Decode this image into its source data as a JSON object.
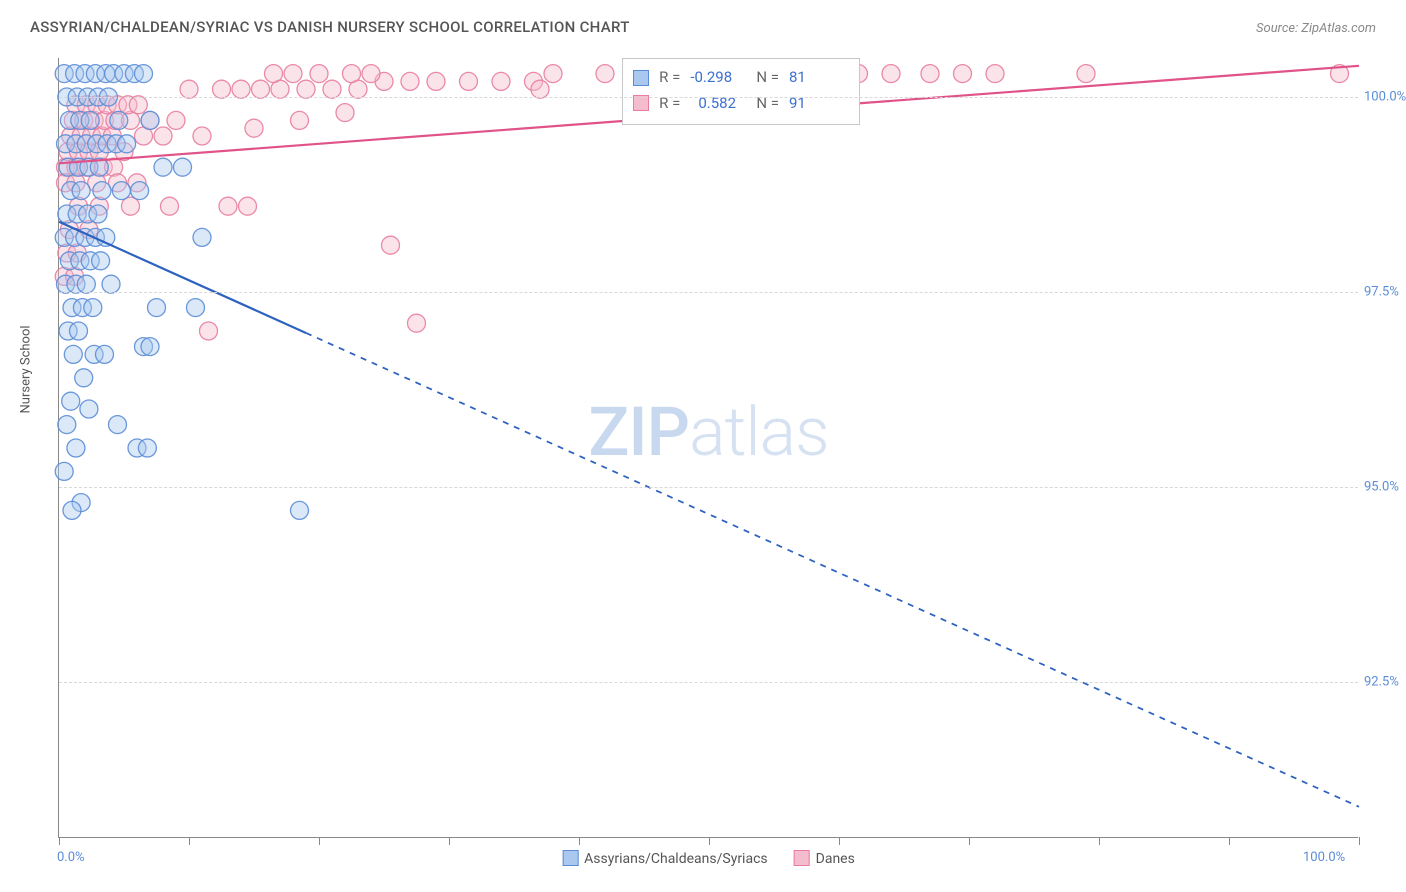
{
  "title": "ASSYRIAN/CHALDEAN/SYRIAC VS DANISH NURSERY SCHOOL CORRELATION CHART",
  "source": "Source: ZipAtlas.com",
  "ylabel": "Nursery School",
  "watermark_zip": "ZIP",
  "watermark_atlas": "atlas",
  "chart": {
    "type": "scatter_with_regression",
    "background_color": "#ffffff",
    "axis_color": "#888888",
    "grid_color": "#d8d8d8",
    "grid_dash": "4 4",
    "xlim": [
      0,
      100
    ],
    "ylim": [
      90.5,
      100.5
    ],
    "xtick_positions": [
      0,
      10,
      20,
      30,
      40,
      50,
      60,
      70,
      80,
      90,
      100
    ],
    "xtick_labels_shown": {
      "0": "0.0%",
      "100": "100.0%"
    },
    "yticks": [
      92.5,
      95.0,
      97.5,
      100.0
    ],
    "ytick_labels": [
      "92.5%",
      "95.0%",
      "97.5%",
      "100.0%"
    ],
    "marker_radius": 9,
    "marker_opacity": 0.42,
    "marker_stroke_opacity": 0.9,
    "line_width": 2.2,
    "regression_dash": "6 6",
    "series": [
      {
        "id": "assyrians",
        "label": "Assyrians/Chaldeans/Syriacs",
        "color_fill": "#a9c7ef",
        "color_stroke": "#5b8dd6",
        "color_line": "#2d62c0",
        "R": "-0.298",
        "N": "81",
        "regression": {
          "x1": 0,
          "y1": 98.4,
          "x2": 100,
          "y2": 90.9,
          "solid_until_x": 19
        },
        "points": [
          [
            0.4,
            100.3
          ],
          [
            1.2,
            100.3
          ],
          [
            2.0,
            100.3
          ],
          [
            2.8,
            100.3
          ],
          [
            3.6,
            100.3
          ],
          [
            4.2,
            100.3
          ],
          [
            5.0,
            100.3
          ],
          [
            5.8,
            100.3
          ],
          [
            6.5,
            100.3
          ],
          [
            0.6,
            100.0
          ],
          [
            1.4,
            100.0
          ],
          [
            2.2,
            100.0
          ],
          [
            3.0,
            100.0
          ],
          [
            3.8,
            100.0
          ],
          [
            0.8,
            99.7
          ],
          [
            1.6,
            99.7
          ],
          [
            2.4,
            99.7
          ],
          [
            4.6,
            99.7
          ],
          [
            7.0,
            99.7
          ],
          [
            0.5,
            99.4
          ],
          [
            1.3,
            99.4
          ],
          [
            2.1,
            99.4
          ],
          [
            2.9,
            99.4
          ],
          [
            3.7,
            99.4
          ],
          [
            4.4,
            99.4
          ],
          [
            5.2,
            99.4
          ],
          [
            0.7,
            99.1
          ],
          [
            1.5,
            99.1
          ],
          [
            2.3,
            99.1
          ],
          [
            3.1,
            99.1
          ],
          [
            8.0,
            99.1
          ],
          [
            9.5,
            99.1
          ],
          [
            0.9,
            98.8
          ],
          [
            1.7,
            98.8
          ],
          [
            3.3,
            98.8
          ],
          [
            4.8,
            98.8
          ],
          [
            6.2,
            98.8
          ],
          [
            0.6,
            98.5
          ],
          [
            1.4,
            98.5
          ],
          [
            2.2,
            98.5
          ],
          [
            3.0,
            98.5
          ],
          [
            0.4,
            98.2
          ],
          [
            1.2,
            98.2
          ],
          [
            2.0,
            98.2
          ],
          [
            2.8,
            98.2
          ],
          [
            3.6,
            98.2
          ],
          [
            11.0,
            98.2
          ],
          [
            0.8,
            97.9
          ],
          [
            1.6,
            97.9
          ],
          [
            2.4,
            97.9
          ],
          [
            3.2,
            97.9
          ],
          [
            0.5,
            97.6
          ],
          [
            1.3,
            97.6
          ],
          [
            2.1,
            97.6
          ],
          [
            4.0,
            97.6
          ],
          [
            1.0,
            97.3
          ],
          [
            1.8,
            97.3
          ],
          [
            2.6,
            97.3
          ],
          [
            7.5,
            97.3
          ],
          [
            10.5,
            97.3
          ],
          [
            0.7,
            97.0
          ],
          [
            1.5,
            97.0
          ],
          [
            1.1,
            96.7
          ],
          [
            2.7,
            96.7
          ],
          [
            3.5,
            96.7
          ],
          [
            6.5,
            96.8
          ],
          [
            7.0,
            96.8
          ],
          [
            1.9,
            96.4
          ],
          [
            0.9,
            96.1
          ],
          [
            0.6,
            95.8
          ],
          [
            4.5,
            95.8
          ],
          [
            1.3,
            95.5
          ],
          [
            6.0,
            95.5
          ],
          [
            6.8,
            95.5
          ],
          [
            0.4,
            95.2
          ],
          [
            1.7,
            94.8
          ],
          [
            18.5,
            94.7
          ],
          [
            1.0,
            94.7
          ],
          [
            2.3,
            96.0
          ]
        ]
      },
      {
        "id": "danes",
        "label": "Danes",
        "color_fill": "#f5bccd",
        "color_stroke": "#e87da0",
        "color_line": "#e05288",
        "R": "0.582",
        "N": "91",
        "regression": {
          "x1": 0,
          "y1": 99.15,
          "x2": 100,
          "y2": 100.4,
          "solid_until_x": 100
        },
        "points": [
          [
            0.5,
            99.1
          ],
          [
            1.3,
            99.1
          ],
          [
            2.1,
            99.1
          ],
          [
            3.4,
            99.1
          ],
          [
            4.2,
            99.1
          ],
          [
            0.7,
            99.3
          ],
          [
            1.5,
            99.3
          ],
          [
            2.3,
            99.3
          ],
          [
            3.1,
            99.3
          ],
          [
            5.0,
            99.3
          ],
          [
            0.9,
            99.5
          ],
          [
            1.7,
            99.5
          ],
          [
            2.5,
            99.5
          ],
          [
            3.3,
            99.5
          ],
          [
            4.1,
            99.5
          ],
          [
            6.5,
            99.5
          ],
          [
            8.0,
            99.5
          ],
          [
            11.0,
            99.5
          ],
          [
            1.1,
            99.7
          ],
          [
            1.9,
            99.7
          ],
          [
            2.7,
            99.7
          ],
          [
            3.5,
            99.7
          ],
          [
            4.3,
            99.7
          ],
          [
            5.5,
            99.7
          ],
          [
            7.0,
            99.7
          ],
          [
            9.0,
            99.7
          ],
          [
            1.3,
            99.9
          ],
          [
            2.1,
            99.9
          ],
          [
            2.9,
            99.9
          ],
          [
            3.7,
            99.9
          ],
          [
            4.5,
            99.9
          ],
          [
            5.3,
            99.9
          ],
          [
            6.1,
            99.9
          ],
          [
            0.5,
            98.9
          ],
          [
            1.3,
            98.9
          ],
          [
            2.9,
            98.9
          ],
          [
            4.5,
            98.9
          ],
          [
            6.0,
            98.9
          ],
          [
            1.5,
            98.6
          ],
          [
            3.1,
            98.6
          ],
          [
            5.5,
            98.6
          ],
          [
            8.5,
            98.6
          ],
          [
            13.0,
            98.6
          ],
          [
            14.5,
            98.6
          ],
          [
            0.8,
            98.3
          ],
          [
            2.3,
            98.3
          ],
          [
            0.6,
            98.0
          ],
          [
            1.4,
            98.0
          ],
          [
            0.4,
            97.7
          ],
          [
            1.2,
            97.7
          ],
          [
            25.5,
            98.1
          ],
          [
            27.5,
            97.1
          ],
          [
            11.5,
            97.0
          ],
          [
            10.0,
            100.1
          ],
          [
            12.5,
            100.1
          ],
          [
            14.0,
            100.1
          ],
          [
            15.5,
            100.1
          ],
          [
            17.0,
            100.1
          ],
          [
            19.0,
            100.1
          ],
          [
            21.0,
            100.1
          ],
          [
            23.0,
            100.1
          ],
          [
            25.0,
            100.2
          ],
          [
            27.0,
            100.2
          ],
          [
            29.0,
            100.2
          ],
          [
            31.5,
            100.2
          ],
          [
            34.0,
            100.2
          ],
          [
            36.5,
            100.2
          ],
          [
            15.0,
            99.6
          ],
          [
            18.5,
            99.7
          ],
          [
            22.0,
            99.8
          ],
          [
            38.0,
            100.3
          ],
          [
            42.0,
            100.3
          ],
          [
            45.0,
            100.3
          ],
          [
            48.0,
            100.3
          ],
          [
            51.0,
            100.3
          ],
          [
            54.0,
            100.3
          ],
          [
            59.0,
            100.3
          ],
          [
            61.5,
            100.3
          ],
          [
            64.0,
            100.3
          ],
          [
            67.0,
            100.3
          ],
          [
            69.5,
            100.3
          ],
          [
            72.0,
            100.3
          ],
          [
            79.0,
            100.3
          ],
          [
            98.5,
            100.3
          ],
          [
            16.5,
            100.3
          ],
          [
            18.0,
            100.3
          ],
          [
            20.0,
            100.3
          ],
          [
            22.5,
            100.3
          ],
          [
            24.0,
            100.3
          ],
          [
            37.0,
            100.1
          ]
        ]
      }
    ]
  },
  "stats_labels": {
    "R": "R =",
    "N": "N ="
  }
}
